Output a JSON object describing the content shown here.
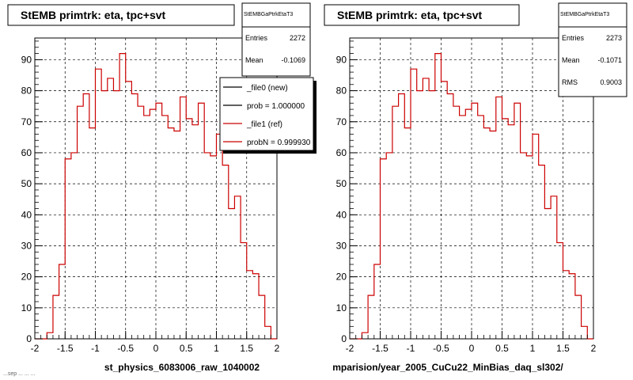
{
  "chart_data": [
    {
      "type": "histogram",
      "title": "StEMB primtrk: eta, tpc+svt",
      "stats": {
        "name": "StEMBGaPtrkEtaT3",
        "rows": [
          {
            "label": "Entries",
            "value": "2272"
          },
          {
            "label": "Mean",
            "value": "-0.1069"
          }
        ]
      },
      "legend": [
        {
          "label": "_file0 (new)",
          "color": "#000000"
        },
        {
          "label": "prob = 1.000000",
          "color": "#000000"
        },
        {
          "label": "_file1 (ref)",
          "color": "#cc0000"
        },
        {
          "label": "probN = 0.999930",
          "color": "#cc0000"
        }
      ],
      "xlim": [
        -2,
        2
      ],
      "ylim": [
        0,
        97
      ],
      "xticks": [
        "-2",
        "-1.5",
        "-1",
        "-0.5",
        "0",
        "0.5",
        "1",
        "1.5",
        "2"
      ],
      "yticks": [
        "0",
        "10",
        "20",
        "30",
        "40",
        "50",
        "60",
        "70",
        "80",
        "90"
      ],
      "bin_edges": [
        -2.0,
        -1.9,
        -1.8,
        -1.7,
        -1.6,
        -1.5,
        -1.4,
        -1.3,
        -1.2,
        -1.1,
        -1.0,
        -0.9,
        -0.8,
        -0.7,
        -0.6,
        -0.5,
        -0.4,
        -0.3,
        -0.2,
        -0.1,
        0.0,
        0.1,
        0.2,
        0.3,
        0.4,
        0.5,
        0.6,
        0.7,
        0.8,
        0.9,
        1.0,
        1.1,
        1.2,
        1.3,
        1.4,
        1.5,
        1.6,
        1.7,
        1.8,
        1.9,
        2.0
      ],
      "series": [
        {
          "values": [
            0,
            0,
            2,
            14,
            24,
            58,
            60,
            75,
            79,
            68,
            87,
            80,
            84,
            80,
            92,
            83,
            79,
            75,
            72,
            74,
            76,
            72,
            68,
            67,
            78,
            71,
            69,
            76,
            60,
            59,
            66,
            56,
            42,
            46,
            31,
            22,
            21,
            14,
            4,
            0
          ],
          "color": "#cc0000"
        }
      ],
      "xlabel": "st_physics_6083006_raw_1040002",
      "grid": true
    },
    {
      "type": "histogram",
      "title": "StEMB primtrk: eta, tpc+svt",
      "stats": {
        "name": "StEMBGaPtrkEtaT3",
        "rows": [
          {
            "label": "Entries",
            "value": "2273"
          },
          {
            "label": "Mean",
            "value": "-0.1071"
          },
          {
            "label": "RMS",
            "value": "0.9003"
          }
        ]
      },
      "xlim": [
        -2,
        2
      ],
      "ylim": [
        0,
        97
      ],
      "xticks": [
        "-2",
        "-1.5",
        "-1",
        "-0.5",
        "0",
        "0.5",
        "1",
        "1.5",
        "2"
      ],
      "yticks": [
        "0",
        "10",
        "20",
        "30",
        "40",
        "50",
        "60",
        "70",
        "80",
        "90"
      ],
      "bin_edges": [
        -2.0,
        -1.9,
        -1.8,
        -1.7,
        -1.6,
        -1.5,
        -1.4,
        -1.3,
        -1.2,
        -1.1,
        -1.0,
        -0.9,
        -0.8,
        -0.7,
        -0.6,
        -0.5,
        -0.4,
        -0.3,
        -0.2,
        -0.1,
        0.0,
        0.1,
        0.2,
        0.3,
        0.4,
        0.5,
        0.6,
        0.7,
        0.8,
        0.9,
        1.0,
        1.1,
        1.2,
        1.3,
        1.4,
        1.5,
        1.6,
        1.7,
        1.8,
        1.9,
        2.0
      ],
      "series": [
        {
          "values": [
            0,
            0,
            2,
            14,
            24,
            58,
            60,
            75,
            79,
            68,
            87,
            80,
            84,
            80,
            92,
            83,
            79,
            75,
            72,
            74,
            76,
            72,
            68,
            67,
            78,
            71,
            69,
            76,
            60,
            59,
            66,
            56,
            42,
            46,
            31,
            22,
            21,
            14,
            4,
            0
          ],
          "color": "#cc0000"
        }
      ],
      "xlabel": "mparision/year_2005_CuCu22_MinBias_daq_sl302/",
      "grid": true
    }
  ],
  "footer_note": "...sep ... ... ..."
}
